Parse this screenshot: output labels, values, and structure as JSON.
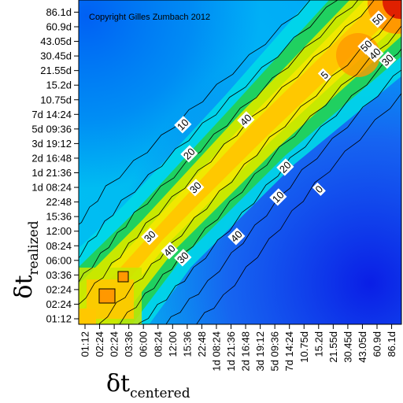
{
  "chart_data": {
    "type": "heatmap",
    "copyright": "Copyright Gilles Zumbach 2012",
    "xlabel": {
      "symbol": "δt",
      "subscript": "centered"
    },
    "ylabel": {
      "symbol": "δt",
      "subscript": "realized"
    },
    "x_ticks": [
      "01:12",
      "02:24",
      "02:24",
      "03:36",
      "06:00",
      "08:24",
      "12:00",
      "15:36",
      "22:48",
      "1d 08:24",
      "1d 21:36",
      "2d 16:48",
      "3d 19:12",
      "5d 09:36",
      "7d 14:24",
      "10.75d",
      "15.2d",
      "21.55d",
      "30.45d",
      "43.05d",
      "60.9d",
      "86.1d"
    ],
    "y_ticks": [
      "01:12",
      "02:24",
      "02:24",
      "03:36",
      "06:00",
      "08:24",
      "12:00",
      "15:36",
      "22:48",
      "1d 08:24",
      "1d 21:36",
      "2d 16:48",
      "3d 19:12",
      "5d 09:36",
      "7d 14:24",
      "10.75d",
      "15.2d",
      "21.55d",
      "30.45d",
      "43.05d",
      "60.9d",
      "86.1d"
    ],
    "contour_levels": [
      0,
      10,
      20,
      30,
      40,
      50
    ],
    "contour_labels": [
      "10",
      "20",
      "30",
      "40",
      "10",
      "20",
      "30",
      "40",
      "50",
      "0",
      "5",
      "40",
      "30",
      "50",
      "30",
      "40"
    ],
    "colorscale": [
      "#0a1ee6",
      "#0090ff",
      "#00d8e8",
      "#20d060",
      "#c8e800",
      "#ff9800",
      "#e02000"
    ]
  }
}
